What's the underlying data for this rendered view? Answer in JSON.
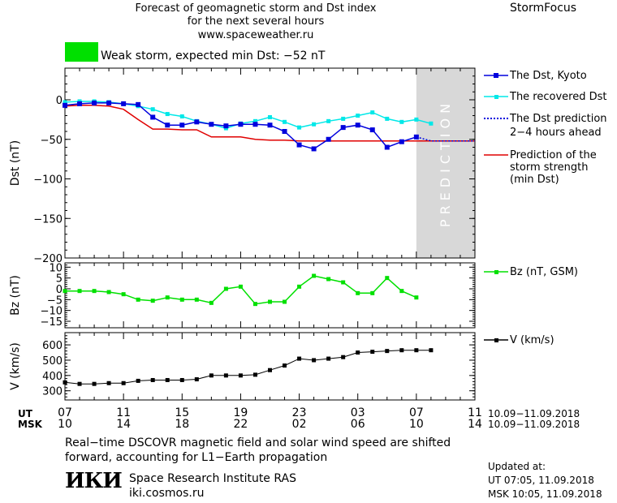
{
  "header": {
    "title_line1": "Forecast of geomagnetic storm and Dst index",
    "title_line2": "for the next several hours",
    "url": "www.spaceweather.ru",
    "brand": "StormFocus"
  },
  "storm_status": {
    "text": "Weak storm, expected min Dst: −52 nT",
    "color": "#00e000"
  },
  "legend": {
    "dst_kyoto": "The Dst, Kyoto",
    "dst_recovered": "The recovered Dst",
    "dst_pred_l1": "The Dst prediction",
    "dst_pred_l2": "2−4 hours ahead",
    "strength_l1": "Prediction of the",
    "strength_l2": "storm strength",
    "strength_l3": "(min Dst)",
    "bz": "Bz (nT, GSM)",
    "v": "V (km/s)"
  },
  "prediction_label": "PREDICTION",
  "time_axis": {
    "ut_label": "UT",
    "msk_label": "MSK",
    "ut_ticks": [
      "07",
      "11",
      "15",
      "19",
      "23",
      "03",
      "07",
      "11"
    ],
    "msk_ticks": [
      "10",
      "14",
      "18",
      "22",
      "02",
      "06",
      "10",
      "14"
    ],
    "range_ut": "10.09−11.09.2018",
    "range_msk": "10.09−11.09.2018"
  },
  "notes": {
    "line1": "Real−time DSCOVR magnetic field and solar wind speed are shifted",
    "line2": "forward, accounting for L1−Earth propagation"
  },
  "institute": {
    "logo": "ИКИ",
    "name": "Space Research Institute RAS",
    "url": "iki.cosmos.ru"
  },
  "updated": {
    "label": "Updated at:",
    "ut": "UT   07:05, 11.09.2018",
    "msk": "MSK 10:05, 11.09.2018"
  },
  "colors": {
    "kyoto": "#0000dd",
    "recovered": "#00e8e8",
    "strength": "#e00000",
    "bz": "#00e000",
    "v": "#000000",
    "prediction_band": "#d8d8d8"
  },
  "chart_data": [
    {
      "type": "line",
      "ylabel": "Dst (nT)",
      "ylim": [
        -200,
        40
      ],
      "yticks": [
        0,
        -50,
        -100,
        -150,
        -200
      ],
      "x_unit": "hours UT from 07:00 10.09.2018",
      "xlim": [
        0,
        28
      ],
      "prediction_band": [
        24,
        28
      ],
      "series": [
        {
          "name": "The Dst, Kyoto",
          "x": [
            0,
            1,
            2,
            3,
            4,
            5,
            6,
            7,
            8,
            9,
            10,
            11,
            12,
            13,
            14,
            15,
            16,
            17,
            18,
            19,
            20,
            21,
            22,
            23,
            24
          ],
          "y": [
            -7,
            -5,
            -4,
            -4,
            -5,
            -6,
            -22,
            -32,
            -32,
            -28,
            -31,
            -33,
            -31,
            -31,
            -32,
            -40,
            -57,
            -62,
            -50,
            -35,
            -32,
            -38,
            -60,
            -53,
            -47
          ]
        },
        {
          "name": "The recovered Dst",
          "x": [
            0,
            1,
            2,
            3,
            4,
            5,
            6,
            7,
            8,
            9,
            10,
            11,
            12,
            13,
            14,
            15,
            16,
            17,
            18,
            19,
            20,
            21,
            22,
            23,
            24,
            25
          ],
          "y": [
            -3,
            -2,
            -2,
            -3,
            -5,
            -8,
            -12,
            -18,
            -21,
            -27,
            -31,
            -36,
            -30,
            -27,
            -22,
            -28,
            -35,
            -31,
            -27,
            -24,
            -20,
            -16,
            -24,
            -28,
            -25,
            -30
          ]
        },
        {
          "name": "The Dst prediction 2−4 hours ahead",
          "x": [
            24,
            25,
            26,
            27,
            28
          ],
          "y": [
            -47,
            -52,
            -52,
            -52,
            -52
          ]
        },
        {
          "name": "Prediction of the storm strength (min Dst)",
          "x": [
            0,
            1,
            2,
            3,
            4,
            5,
            6,
            7,
            8,
            9,
            10,
            11,
            12,
            13,
            14,
            15,
            16,
            17,
            18,
            19,
            20,
            21,
            22,
            23,
            24,
            25,
            26,
            27,
            28
          ],
          "y": [
            -8,
            -7,
            -7,
            -8,
            -12,
            -25,
            -37,
            -37,
            -38,
            -38,
            -47,
            -47,
            -47,
            -50,
            -51,
            -51,
            -52,
            -52,
            -52,
            -52,
            -52,
            -52,
            -52,
            -52,
            -52,
            -52,
            -52,
            -52,
            -52
          ]
        }
      ]
    },
    {
      "type": "line",
      "ylabel": "Bz (nT)",
      "ylim": [
        -18,
        12
      ],
      "yticks": [
        10,
        5,
        0,
        -5,
        -10,
        -15
      ],
      "series": [
        {
          "name": "Bz (nT, GSM)",
          "x": [
            0,
            1,
            2,
            3,
            4,
            5,
            6,
            7,
            8,
            9,
            10,
            11,
            12,
            13,
            14,
            15,
            16,
            17,
            18,
            19,
            20,
            21,
            22,
            23,
            24,
            25
          ],
          "y": [
            -1,
            -1,
            -1,
            -1.5,
            -2.5,
            -5,
            -5.5,
            -4,
            -5,
            -5,
            -6.5,
            0,
            1,
            -7,
            -6,
            -6,
            1,
            6,
            4.5,
            3,
            -2,
            -2,
            5,
            -1,
            -4,
            null
          ]
        }
      ]
    },
    {
      "type": "line",
      "ylabel": "V (km/s)",
      "ylim": [
        240,
        680
      ],
      "yticks": [
        300,
        400,
        500,
        600
      ],
      "series": [
        {
          "name": "V (km/s)",
          "x": [
            0,
            1,
            2,
            3,
            4,
            5,
            6,
            7,
            8,
            9,
            10,
            11,
            12,
            13,
            14,
            15,
            16,
            17,
            18,
            19,
            20,
            21,
            22,
            23,
            24,
            25
          ],
          "y": [
            355,
            345,
            345,
            350,
            350,
            365,
            370,
            370,
            370,
            375,
            400,
            400,
            400,
            405,
            435,
            465,
            510,
            500,
            510,
            520,
            550,
            555,
            560,
            565,
            565,
            565
          ]
        }
      ]
    }
  ]
}
